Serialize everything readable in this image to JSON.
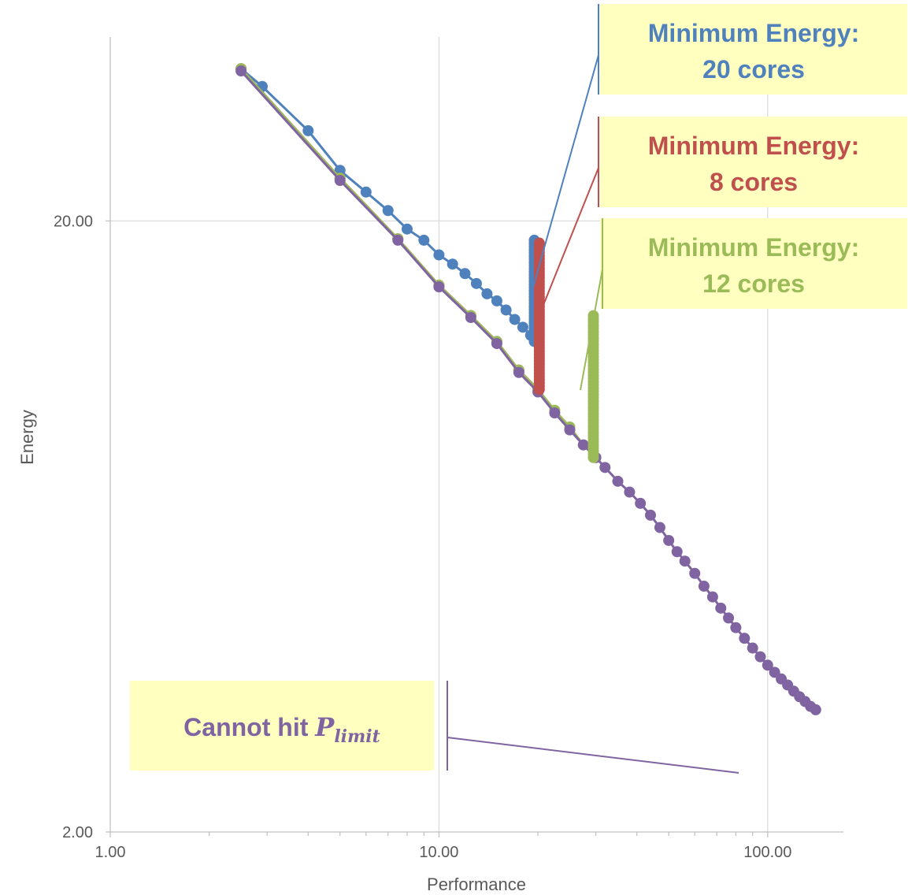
{
  "chart_data": {
    "type": "scatter",
    "xscale": "log",
    "yscale": "log",
    "xlim": [
      1,
      170
    ],
    "ylim": [
      2,
      40
    ],
    "xlabel": "Performance",
    "ylabel": "Energy",
    "xticks": [
      {
        "value": 1,
        "label": "1.00"
      },
      {
        "value": 10,
        "label": "10.00"
      },
      {
        "value": 100,
        "label": "100.00"
      }
    ],
    "yticks": [
      {
        "value": 2,
        "label": "2.00"
      },
      {
        "value": 20,
        "label": "20.00"
      }
    ],
    "grid": true,
    "colors": {
      "blue": "#4f81bd",
      "red": "#c0504d",
      "green": "#9bbb59",
      "purple": "#8064a2",
      "callout_fill": "#ffffc0",
      "grid": "#d9d9d9",
      "axis": "#bfbfbf"
    },
    "series": [
      {
        "color": "blue",
        "points": [
          [
            2.5,
            35.5
          ],
          [
            2.9,
            33.2
          ],
          [
            4,
            28.1
          ],
          [
            5,
            24.2
          ],
          [
            6,
            22.3
          ],
          [
            7,
            20.8
          ],
          [
            8,
            19.4
          ],
          [
            9,
            18.6
          ],
          [
            10,
            17.6
          ],
          [
            11,
            17.0
          ],
          [
            12,
            16.4
          ],
          [
            13,
            15.8
          ],
          [
            14,
            15.2
          ],
          [
            15,
            14.8
          ],
          [
            16,
            14.3
          ],
          [
            17,
            13.8
          ],
          [
            18,
            13.4
          ],
          [
            19,
            13.0
          ],
          [
            20,
            12.7
          ]
        ]
      },
      {
        "color": "red",
        "points": [
          [
            2.5,
            35.5
          ],
          [
            5,
            23.5
          ],
          [
            7.5,
            18.7
          ],
          [
            10,
            15.7
          ],
          [
            12.5,
            14.0
          ],
          [
            15,
            12.7
          ],
          [
            17.5,
            11.4
          ],
          [
            20,
            10.6
          ]
        ]
      },
      {
        "color": "green",
        "points": [
          [
            2.5,
            35.5
          ],
          [
            5,
            23.5
          ],
          [
            7.5,
            18.7
          ],
          [
            10,
            15.7
          ],
          [
            12.5,
            14.0
          ],
          [
            15,
            12.7
          ],
          [
            17.5,
            11.4
          ],
          [
            20,
            10.6
          ],
          [
            22.5,
            9.8
          ],
          [
            25,
            9.2
          ],
          [
            27.5,
            8.6
          ],
          [
            30,
            8.2
          ]
        ]
      },
      {
        "color": "purple",
        "points": [
          [
            2.5,
            35.2
          ],
          [
            5,
            23.3
          ],
          [
            7.5,
            18.6
          ],
          [
            10,
            15.6
          ],
          [
            12.5,
            13.9
          ],
          [
            15,
            12.6
          ],
          [
            17.5,
            11.3
          ],
          [
            20,
            10.5
          ],
          [
            22.5,
            9.7
          ],
          [
            25,
            9.1
          ],
          [
            27.5,
            8.6
          ],
          [
            30,
            8.2
          ],
          [
            32,
            7.9
          ],
          [
            35,
            7.5
          ],
          [
            38,
            7.2
          ],
          [
            41,
            6.9
          ],
          [
            44,
            6.6
          ],
          [
            47,
            6.3
          ],
          [
            50,
            6.0
          ],
          [
            53,
            5.75
          ],
          [
            56,
            5.55
          ],
          [
            60,
            5.3
          ],
          [
            64,
            5.05
          ],
          [
            68,
            4.85
          ],
          [
            72,
            4.65
          ],
          [
            76,
            4.48
          ],
          [
            80,
            4.32
          ],
          [
            85,
            4.15
          ],
          [
            90,
            4.0
          ],
          [
            95,
            3.87
          ],
          [
            100,
            3.75
          ],
          [
            105,
            3.65
          ],
          [
            110,
            3.56
          ],
          [
            115,
            3.48
          ],
          [
            120,
            3.4
          ],
          [
            125,
            3.33
          ],
          [
            130,
            3.27
          ],
          [
            135,
            3.21
          ],
          [
            140,
            3.17
          ]
        ]
      }
    ],
    "vertical_runs": [
      {
        "color": "blue",
        "x": 19.5,
        "y_from": 12.7,
        "y_to": 18.6
      },
      {
        "color": "red",
        "x": 20.2,
        "y_from": 10.6,
        "y_to": 18.4
      },
      {
        "color": "green",
        "x": 29.5,
        "y_from": 8.2,
        "y_to": 14.0
      }
    ],
    "annotations": [
      {
        "color": "blue",
        "line1": "Minimum Energy:",
        "line2": "20 cores"
      },
      {
        "color": "red",
        "line1": "Minimum Energy:",
        "line2": "8 cores"
      },
      {
        "color": "green",
        "line1": "Minimum Energy:",
        "line2": "12 cores"
      },
      {
        "color": "purple",
        "text": "Cannot hit ",
        "math": "P",
        "math_sub": "limit"
      }
    ]
  }
}
